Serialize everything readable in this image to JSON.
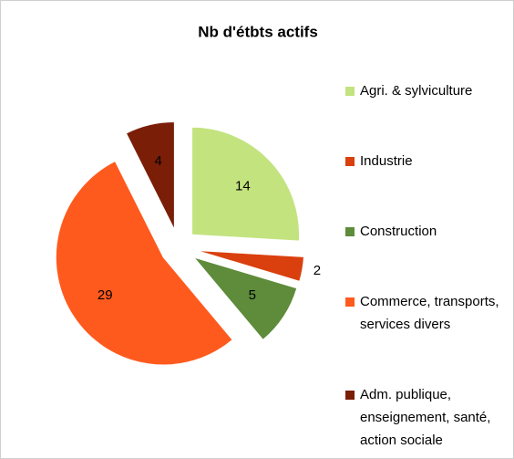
{
  "chart_data": {
    "type": "pie",
    "title": "Nb d'étbts actifs",
    "categories": [
      "Agri. & sylviculture",
      "Industrie",
      "Construction",
      "Commerce, transports, services divers",
      "Adm. publique, enseignement, santé, action sociale"
    ],
    "values": [
      14,
      2,
      5,
      29,
      4
    ],
    "colors": [
      "#c3e37f",
      "#d9400e",
      "#5e8c3a",
      "#ff5a1e",
      "#7a1e08"
    ],
    "legend": "right"
  }
}
